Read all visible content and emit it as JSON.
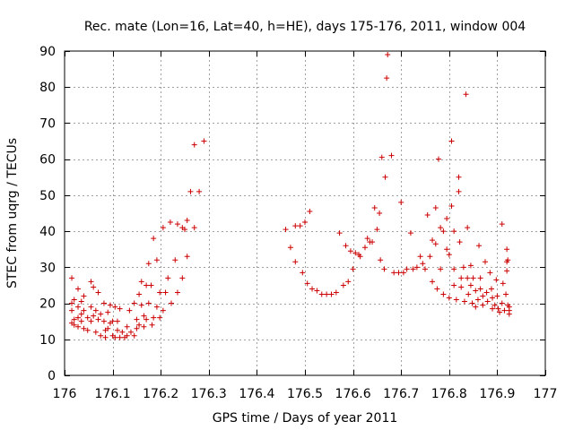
{
  "chart_data": {
    "type": "scatter",
    "title": "Rec. mate (Lon=16, Lat=40, h=HE), days 175-176, 2011, window 004",
    "xlabel": "GPS time / Days of year 2011",
    "ylabel": "STEC from uqrg / TECUs",
    "xlim": [
      176,
      177
    ],
    "ylim": [
      0,
      90
    ],
    "x_ticks": [
      176,
      176.1,
      176.2,
      176.3,
      176.4,
      176.5,
      176.6,
      176.7,
      176.8,
      176.9,
      177
    ],
    "x_tick_labels": [
      "176",
      "176.1",
      "176.2",
      "176.3",
      "176.4",
      "176.5",
      "176.6",
      "176.7",
      "176.8",
      "176.9",
      "177"
    ],
    "y_ticks": [
      0,
      10,
      20,
      30,
      40,
      50,
      60,
      70,
      80,
      90
    ],
    "y_tick_labels": [
      "0",
      "10",
      "20",
      "30",
      "40",
      "50",
      "60",
      "70",
      "80",
      "90"
    ],
    "grid": true,
    "marker": "+",
    "color": "#cc0000",
    "points": [
      [
        176.015,
        27
      ],
      [
        176.015,
        20
      ],
      [
        176.015,
        18
      ],
      [
        176.015,
        14.5
      ],
      [
        176.02,
        21
      ],
      [
        176.02,
        15.5
      ],
      [
        176.02,
        14
      ],
      [
        176.028,
        24
      ],
      [
        176.028,
        19
      ],
      [
        176.028,
        16
      ],
      [
        176.028,
        13.5
      ],
      [
        176.035,
        20.5
      ],
      [
        176.035,
        17
      ],
      [
        176.035,
        15
      ],
      [
        176.04,
        22
      ],
      [
        176.04,
        18
      ],
      [
        176.04,
        13
      ],
      [
        176.048,
        16
      ],
      [
        176.048,
        12.5
      ],
      [
        176.055,
        26
      ],
      [
        176.055,
        19
      ],
      [
        176.055,
        15
      ],
      [
        176.06,
        24.5
      ],
      [
        176.06,
        16.5
      ],
      [
        176.065,
        18
      ],
      [
        176.065,
        12
      ],
      [
        176.07,
        23
      ],
      [
        176.07,
        15.5
      ],
      [
        176.075,
        17
      ],
      [
        176.075,
        11
      ],
      [
        176.082,
        20
      ],
      [
        176.082,
        15
      ],
      [
        176.085,
        12.5
      ],
      [
        176.085,
        10.5
      ],
      [
        176.09,
        17.5
      ],
      [
        176.09,
        13
      ],
      [
        176.095,
        19.5
      ],
      [
        176.095,
        14.5
      ],
      [
        176.1,
        11
      ],
      [
        176.1,
        15
      ],
      [
        176.105,
        19
      ],
      [
        176.105,
        10.5
      ],
      [
        176.11,
        12.5
      ],
      [
        176.11,
        15
      ],
      [
        176.115,
        18.5
      ],
      [
        176.115,
        10.5
      ],
      [
        176.12,
        12
      ],
      [
        176.125,
        10.5
      ],
      [
        176.13,
        13.5
      ],
      [
        176.13,
        11
      ],
      [
        176.135,
        18
      ],
      [
        176.138,
        12
      ],
      [
        176.145,
        20
      ],
      [
        176.145,
        11
      ],
      [
        176.15,
        15.5
      ],
      [
        176.15,
        13
      ],
      [
        176.155,
        22.5
      ],
      [
        176.155,
        14
      ],
      [
        176.16,
        26
      ],
      [
        176.16,
        19.5
      ],
      [
        176.165,
        16.5
      ],
      [
        176.165,
        13.5
      ],
      [
        176.17,
        25
      ],
      [
        176.17,
        15.5
      ],
      [
        176.175,
        31
      ],
      [
        176.175,
        20
      ],
      [
        176.18,
        25
      ],
      [
        176.182,
        14
      ],
      [
        176.185,
        38
      ],
      [
        176.185,
        16
      ],
      [
        176.192,
        32
      ],
      [
        176.192,
        19
      ],
      [
        176.198,
        16
      ],
      [
        176.198,
        23
      ],
      [
        176.205,
        41
      ],
      [
        176.205,
        18
      ],
      [
        176.21,
        23
      ],
      [
        176.215,
        27
      ],
      [
        176.22,
        42.5
      ],
      [
        176.222,
        20
      ],
      [
        176.23,
        32
      ],
      [
        176.235,
        42
      ],
      [
        176.235,
        23
      ],
      [
        176.245,
        41
      ],
      [
        176.245,
        27
      ],
      [
        176.25,
        40.5
      ],
      [
        176.255,
        33
      ],
      [
        176.255,
        43
      ],
      [
        176.262,
        51
      ],
      [
        176.27,
        41
      ],
      [
        176.27,
        64
      ],
      [
        176.28,
        51
      ],
      [
        176.29,
        65
      ],
      [
        176.46,
        40.5
      ],
      [
        176.47,
        35.5
      ],
      [
        176.48,
        41.5
      ],
      [
        176.48,
        31.5
      ],
      [
        176.49,
        41.5
      ],
      [
        176.495,
        28.5
      ],
      [
        176.5,
        42.5
      ],
      [
        176.505,
        25.5
      ],
      [
        176.51,
        45.5
      ],
      [
        176.515,
        24
      ],
      [
        176.525,
        23.5
      ],
      [
        176.535,
        22.5
      ],
      [
        176.545,
        22.5
      ],
      [
        176.555,
        22.5
      ],
      [
        176.565,
        23
      ],
      [
        176.572,
        39.5
      ],
      [
        176.58,
        25
      ],
      [
        176.585,
        36
      ],
      [
        176.59,
        26
      ],
      [
        176.595,
        34.5
      ],
      [
        176.6,
        29.5
      ],
      [
        176.605,
        34
      ],
      [
        176.612,
        33.5
      ],
      [
        176.615,
        33
      ],
      [
        176.625,
        35.5
      ],
      [
        176.63,
        38
      ],
      [
        176.635,
        37
      ],
      [
        176.64,
        37
      ],
      [
        176.645,
        46.5
      ],
      [
        176.65,
        40.5
      ],
      [
        176.655,
        45
      ],
      [
        176.657,
        32
      ],
      [
        176.66,
        60.5
      ],
      [
        176.665,
        29.5
      ],
      [
        176.667,
        55
      ],
      [
        176.67,
        82.5
      ],
      [
        176.672,
        89
      ],
      [
        176.68,
        61
      ],
      [
        176.685,
        28.5
      ],
      [
        176.695,
        28.5
      ],
      [
        176.7,
        48
      ],
      [
        176.705,
        28.5
      ],
      [
        176.712,
        29.5
      ],
      [
        176.72,
        39.5
      ],
      [
        176.725,
        29.5
      ],
      [
        176.733,
        30
      ],
      [
        176.74,
        33
      ],
      [
        176.745,
        31
      ],
      [
        176.75,
        29.5
      ],
      [
        176.755,
        44.5
      ],
      [
        176.76,
        33
      ],
      [
        176.765,
        37.5
      ],
      [
        176.765,
        26
      ],
      [
        176.772,
        46.5
      ],
      [
        176.772,
        36.5
      ],
      [
        176.778,
        60
      ],
      [
        176.775,
        24
      ],
      [
        176.782,
        41
      ],
      [
        176.782,
        29.5
      ],
      [
        176.788,
        40
      ],
      [
        176.788,
        22.5
      ],
      [
        176.795,
        43.5
      ],
      [
        176.795,
        35
      ],
      [
        176.8,
        33.5
      ],
      [
        176.8,
        21.5
      ],
      [
        176.805,
        65
      ],
      [
        176.805,
        47
      ],
      [
        176.81,
        40
      ],
      [
        176.81,
        29.5
      ],
      [
        176.81,
        25
      ],
      [
        176.815,
        21
      ],
      [
        176.82,
        55
      ],
      [
        176.82,
        51
      ],
      [
        176.822,
        37
      ],
      [
        176.825,
        27
      ],
      [
        176.825,
        24.5
      ],
      [
        176.83,
        30
      ],
      [
        176.832,
        20.5
      ],
      [
        176.835,
        78
      ],
      [
        176.838,
        41
      ],
      [
        176.838,
        27
      ],
      [
        176.84,
        22.5
      ],
      [
        176.845,
        30.5
      ],
      [
        176.845,
        25
      ],
      [
        176.848,
        20
      ],
      [
        176.85,
        27
      ],
      [
        176.855,
        23.5
      ],
      [
        176.855,
        19
      ],
      [
        176.86,
        21
      ],
      [
        176.862,
        36
      ],
      [
        176.865,
        27
      ],
      [
        176.865,
        24
      ],
      [
        176.87,
        22
      ],
      [
        176.87,
        19.5
      ],
      [
        176.875,
        31.5
      ],
      [
        176.878,
        23
      ],
      [
        176.88,
        20.5
      ],
      [
        176.885,
        28.5
      ],
      [
        176.888,
        24
      ],
      [
        176.89,
        21.5
      ],
      [
        176.89,
        18.5
      ],
      [
        176.895,
        19.5
      ],
      [
        176.898,
        26.5
      ],
      [
        176.9,
        22
      ],
      [
        176.902,
        18.5
      ],
      [
        176.905,
        17.5
      ],
      [
        176.91,
        20
      ],
      [
        176.91,
        42
      ],
      [
        176.912,
        25.5
      ],
      [
        176.915,
        18
      ],
      [
        176.918,
        22.5
      ],
      [
        176.92,
        35
      ],
      [
        176.92,
        31.5
      ],
      [
        176.92,
        29
      ],
      [
        176.922,
        32
      ],
      [
        176.922,
        19.5
      ],
      [
        176.925,
        19
      ],
      [
        176.925,
        18
      ],
      [
        176.925,
        17
      ]
    ]
  }
}
